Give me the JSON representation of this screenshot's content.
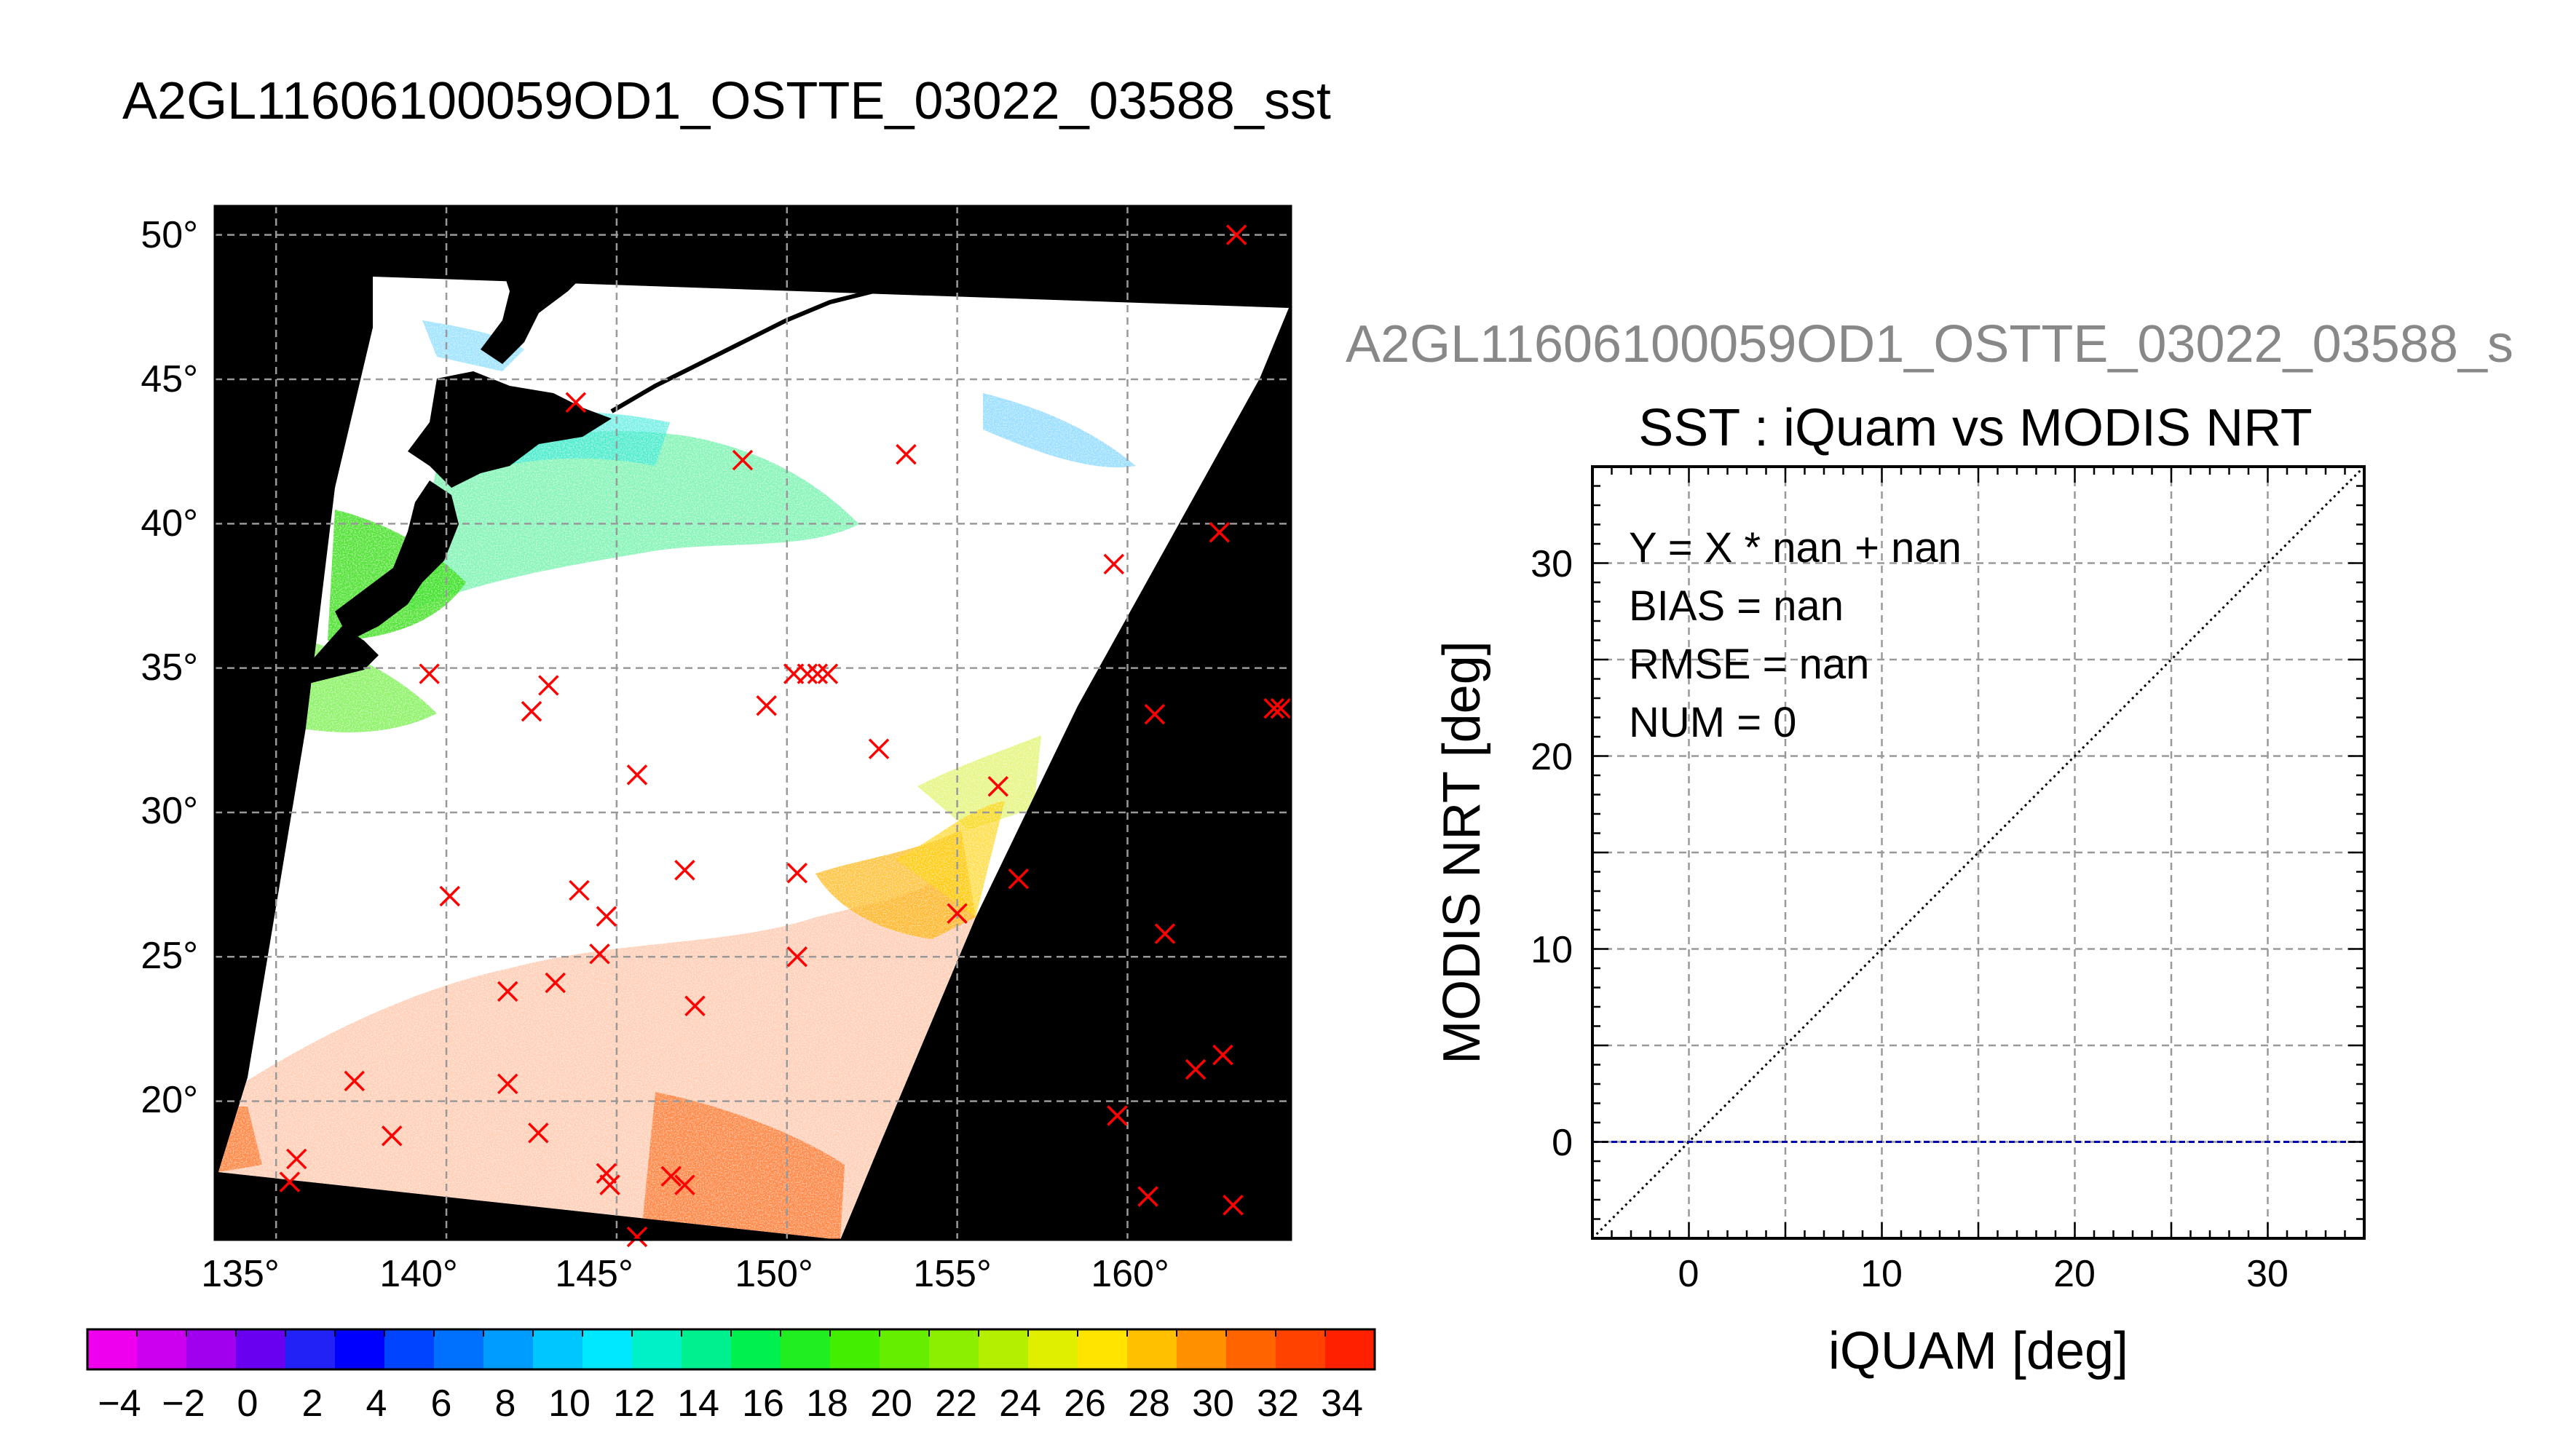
{
  "main_title": "A2GL11606100059OD1_OSTTE_03022_03588_sst",
  "chart_data": [
    {
      "type": "map",
      "title": "A2GL11606100059OD1_OSTTE_03022_03588_sst",
      "xlim": [
        133.2,
        164.8
      ],
      "ylim": [
        15.2,
        51.0
      ],
      "x_ticks": [
        135,
        140,
        145,
        150,
        155,
        160
      ],
      "x_tick_labels": [
        "135°",
        "140°",
        "145°",
        "150°",
        "155°",
        "160°"
      ],
      "y_ticks": [
        20,
        25,
        30,
        35,
        40,
        45,
        50
      ],
      "y_tick_labels": [
        "20°",
        "25°",
        "30°",
        "35°",
        "40°",
        "45°",
        "50°"
      ],
      "grid": true,
      "series": [
        {
          "marker": "x",
          "color": "#ff0000",
          "points": [
            [
              163.2,
              50
            ],
            [
              143.8,
              44.2
            ],
            [
              148.7,
              42.2
            ],
            [
              153.5,
              42.4
            ],
            [
              162.7,
              39.7
            ],
            [
              159.6,
              38.6
            ],
            [
              139.5,
              34.8
            ],
            [
              142.5,
              33.5
            ],
            [
              143.0,
              34.4
            ],
            [
              149.4,
              33.7
            ],
            [
              150.2,
              34.8
            ],
            [
              150.6,
              34.8
            ],
            [
              150.9,
              34.8
            ],
            [
              151.2,
              34.8
            ],
            [
              160.8,
              33.4
            ],
            [
              164.3,
              33.6
            ],
            [
              164.5,
              33.6
            ],
            [
              152.7,
              32.2
            ],
            [
              145.6,
              31.3
            ],
            [
              156.2,
              30.9
            ],
            [
              140.1,
              27.1
            ],
            [
              143.9,
              27.3
            ],
            [
              144.7,
              26.4
            ],
            [
              147.0,
              28.0
            ],
            [
              150.3,
              27.9
            ],
            [
              156.8,
              27.7
            ],
            [
              155.0,
              26.5
            ],
            [
              161.1,
              25.8
            ],
            [
              144.5,
              25.1
            ],
            [
              150.3,
              25.0
            ],
            [
              141.8,
              23.8
            ],
            [
              143.2,
              24.1
            ],
            [
              147.3,
              23.3
            ],
            [
              162.8,
              21.6
            ],
            [
              162.0,
              21.1
            ],
            [
              137.3,
              20.7
            ],
            [
              141.8,
              20.6
            ],
            [
              159.7,
              19.5
            ],
            [
              138.4,
              18.8
            ],
            [
              142.7,
              18.9
            ],
            [
              135.6,
              18.0
            ],
            [
              135.4,
              17.2
            ],
            [
              144.7,
              17.5
            ],
            [
              144.8,
              17.1
            ],
            [
              146.6,
              17.4
            ],
            [
              147.0,
              17.1
            ],
            [
              160.6,
              16.7
            ],
            [
              163.1,
              16.4
            ],
            [
              145.6,
              15.3
            ]
          ]
        }
      ],
      "colorbar": {
        "min": -5,
        "max": 35,
        "tick_labels": [
          "−4",
          "−2",
          "0",
          "2",
          "4",
          "6",
          "8",
          "10",
          "12",
          "14",
          "16",
          "18",
          "20",
          "22",
          "24",
          "26",
          "28",
          "30",
          "32",
          "34"
        ],
        "colors": [
          "#ee00ee",
          "#cc00ee",
          "#a000ee",
          "#6a00f0",
          "#2222f6",
          "#0000ff",
          "#0044ff",
          "#0070ff",
          "#009cff",
          "#00c6ff",
          "#00e8ff",
          "#00f0c8",
          "#00f090",
          "#00f050",
          "#20ee20",
          "#44ee00",
          "#66ee00",
          "#8cee00",
          "#b4ee00",
          "#e0ee00",
          "#ffe400",
          "#ffc000",
          "#ff9000",
          "#ff6400",
          "#ff4200",
          "#ff2000"
        ]
      }
    },
    {
      "type": "scatter",
      "subtitle": "A2GL11606100059OD1_OSTTE_03022_03588_s",
      "title": "SST : iQuam vs MODIS NRT",
      "xlabel": "iQUAM [deg]",
      "ylabel": "MODIS NRT [deg]",
      "xlim": [
        -5,
        35
      ],
      "ylim": [
        -5,
        35
      ],
      "x_tick_labels": [
        "0",
        "10",
        "20",
        "30"
      ],
      "y_tick_labels": [
        "0",
        "10",
        "20",
        "30"
      ],
      "grid": true,
      "stats": [
        "Y = X * nan + nan",
        "BIAS = nan",
        "RMSE = nan",
        "NUM = 0"
      ],
      "reference_lines": [
        {
          "name": "",
          "kind": "y=x",
          "color": "#000000",
          "style": "dotted"
        },
        {
          "name": "",
          "kind": "y=0",
          "color": "#0000aa",
          "style": "dashed"
        }
      ],
      "points": []
    }
  ]
}
